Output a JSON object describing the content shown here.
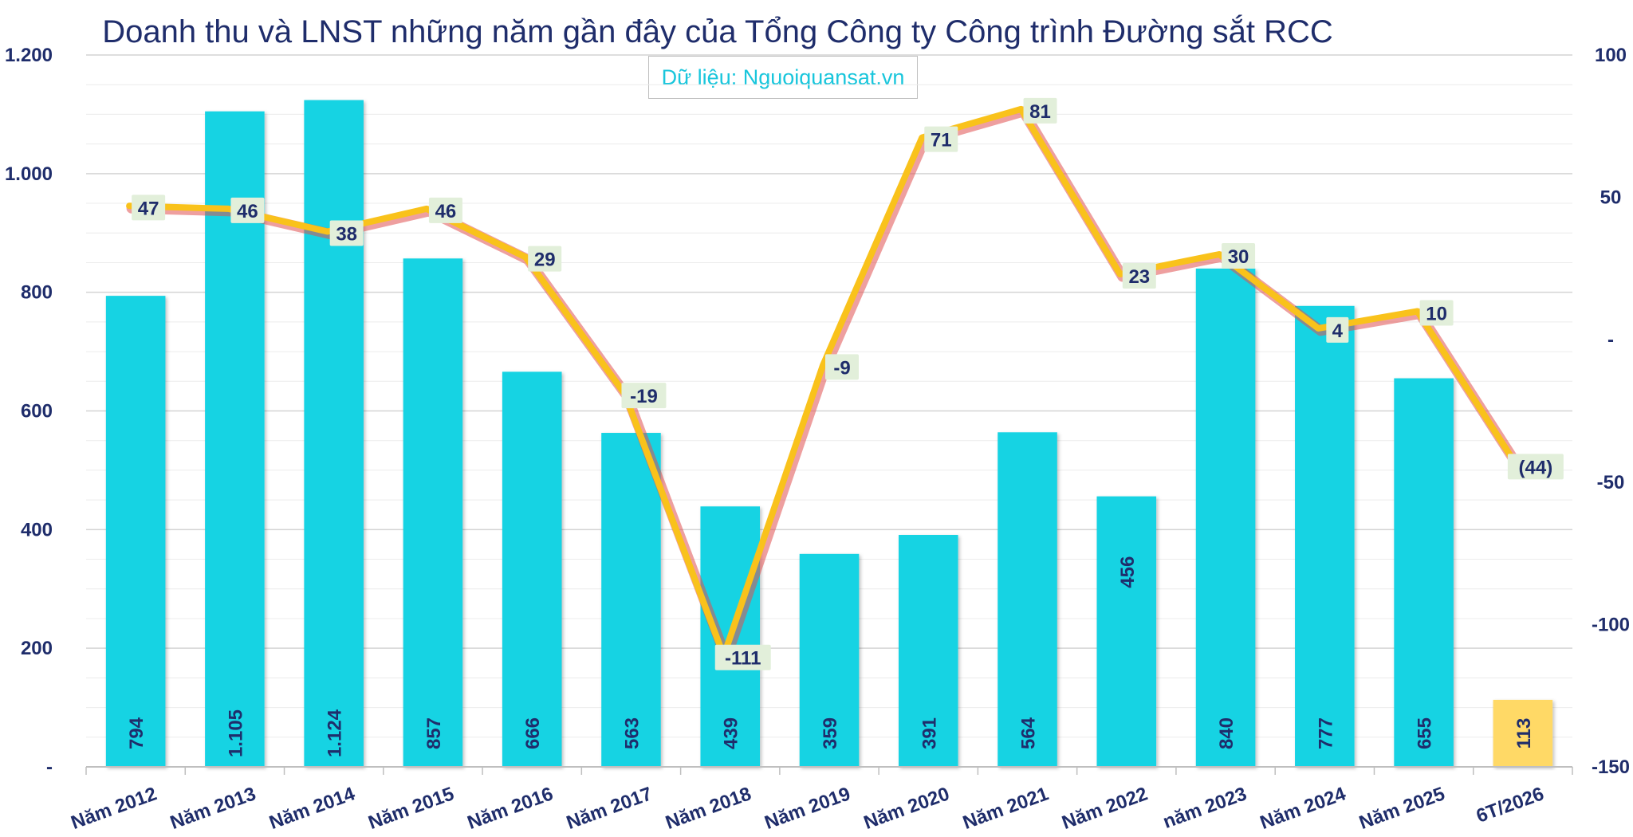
{
  "chart_data": {
    "type": "bar",
    "title": "Doanh thu và LNST những năm gần đây của Tổng Công ty Công trình Đường sắt RCC",
    "subtitle": "Dữ liệu: Nguoiquansat.vn",
    "categories": [
      "Năm 2012",
      "Năm 2013",
      "Năm 2014",
      "Năm 2015",
      "Năm 2016",
      "Năm 2017",
      "Năm 2018",
      "Năm 2019",
      "Năm 2020",
      "Năm 2021",
      "Năm 2022",
      "năm 2023",
      "Năm 2024",
      "Năm 2025",
      "6T/2026"
    ],
    "bar_labels": [
      "794",
      "1.105",
      "1.124",
      "857",
      "666",
      "563",
      "439",
      "359",
      "391",
      "564",
      "456",
      "840",
      "777",
      "655",
      "113"
    ],
    "line_labels": [
      "47",
      "46",
      "38",
      "46",
      "29",
      "-19",
      "-111",
      "-9",
      "71",
      "81",
      "23",
      "30",
      "4",
      "10",
      "(44)"
    ],
    "series": [
      {
        "type": "bar",
        "axis": "left",
        "values": [
          794,
          1105,
          1124,
          857,
          666,
          563,
          439,
          359,
          391,
          564,
          456,
          840,
          777,
          655,
          113
        ],
        "color": "#12d3e3",
        "highlight_last_color": "#ffd966"
      },
      {
        "type": "line",
        "axis": "right",
        "values": [
          47,
          46,
          38,
          46,
          29,
          -19,
          -111,
          -9,
          71,
          81,
          23,
          30,
          4,
          10,
          -44
        ],
        "color": "#f9c21b",
        "shadow_color": "#e05050"
      }
    ],
    "y_left": {
      "min": 0,
      "max": 1200,
      "step": 200,
      "tick_labels": [
        "-",
        "200",
        "400",
        "600",
        "800",
        "1.000",
        "1.200"
      ]
    },
    "y_right": {
      "min": -150,
      "max": 100,
      "step": 50,
      "tick_labels": [
        "-150",
        "-100",
        "-50",
        "-",
        "50",
        "100"
      ]
    },
    "grid": true,
    "legend": "none"
  }
}
